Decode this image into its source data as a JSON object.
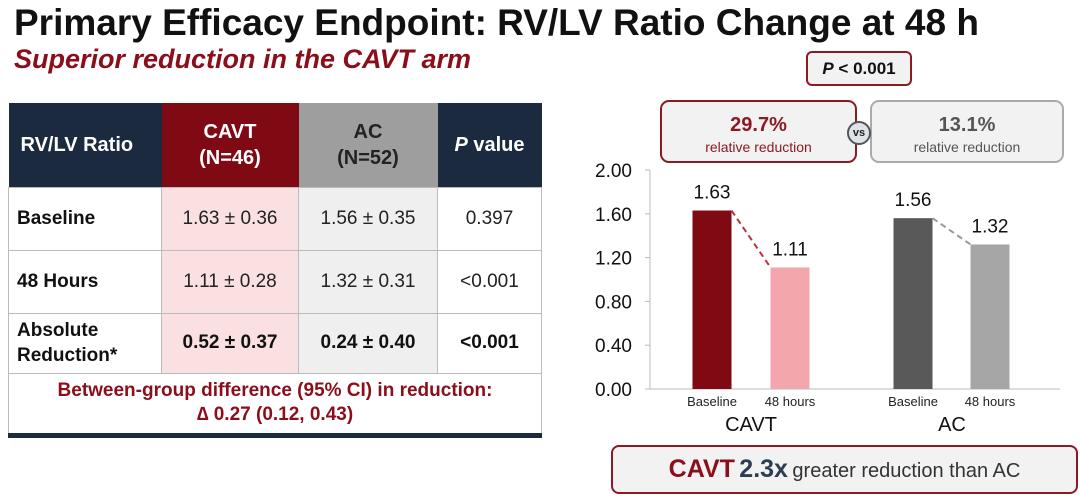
{
  "title": "Primary Efficacy Endpoint: RV/LV Ratio Change at 48 h",
  "subtitle": "Superior reduction in the CAVT arm",
  "table": {
    "headers": {
      "c1": "RV/LV Ratio",
      "cavt": "CAVT",
      "cavt_n": "(N=46)",
      "ac": "AC",
      "ac_n": "(N=52)",
      "p_italic": "P",
      "p_rest": " value"
    },
    "rows": [
      {
        "label": "Baseline",
        "cavt": "1.63 ± 0.36",
        "ac": "1.56 ± 0.35",
        "p": "0.397"
      },
      {
        "label": "48 Hours",
        "cavt": "1.11 ± 0.28",
        "ac": "1.32 ± 0.31",
        "p": "<0.001"
      },
      {
        "label": "Absolute Reduction*",
        "cavt": "0.52 ± 0.37",
        "ac": "0.24 ± 0.40",
        "p": "<0.001"
      }
    ],
    "footer_line1": "Between-group difference (95% CI) in reduction:",
    "footer_line2": "∆ 0.27 (0.12, 0.43)"
  },
  "pvalue": {
    "italic": "P",
    "rest": " < 0.001"
  },
  "cavt_rel": {
    "value": "29.7%",
    "label": "relative reduction"
  },
  "vs": "vs",
  "ac_rel": {
    "value": "13.1%",
    "label": "relative reduction"
  },
  "bottom": {
    "a": "CAVT",
    "b": "2.3x",
    "c": "greater reduction than AC"
  },
  "chart_data": {
    "type": "bar",
    "groups": [
      "CAVT",
      "AC"
    ],
    "categories": [
      "Baseline",
      "48 hours",
      "Baseline",
      "48 hours"
    ],
    "values": [
      1.63,
      1.11,
      1.56,
      1.32
    ],
    "labels": [
      "1.63",
      "1.11",
      "1.56",
      "1.32"
    ],
    "colors": [
      "#7f0a14",
      "#f4a6ad",
      "#595959",
      "#a6a6a6"
    ],
    "ylim": [
      0,
      2
    ],
    "yticks": [
      "0.00",
      "0.40",
      "0.80",
      "1.20",
      "1.60",
      "2.00"
    ],
    "ytick_values": [
      0,
      0.4,
      0.8,
      1.2,
      1.6,
      2.0
    ]
  }
}
